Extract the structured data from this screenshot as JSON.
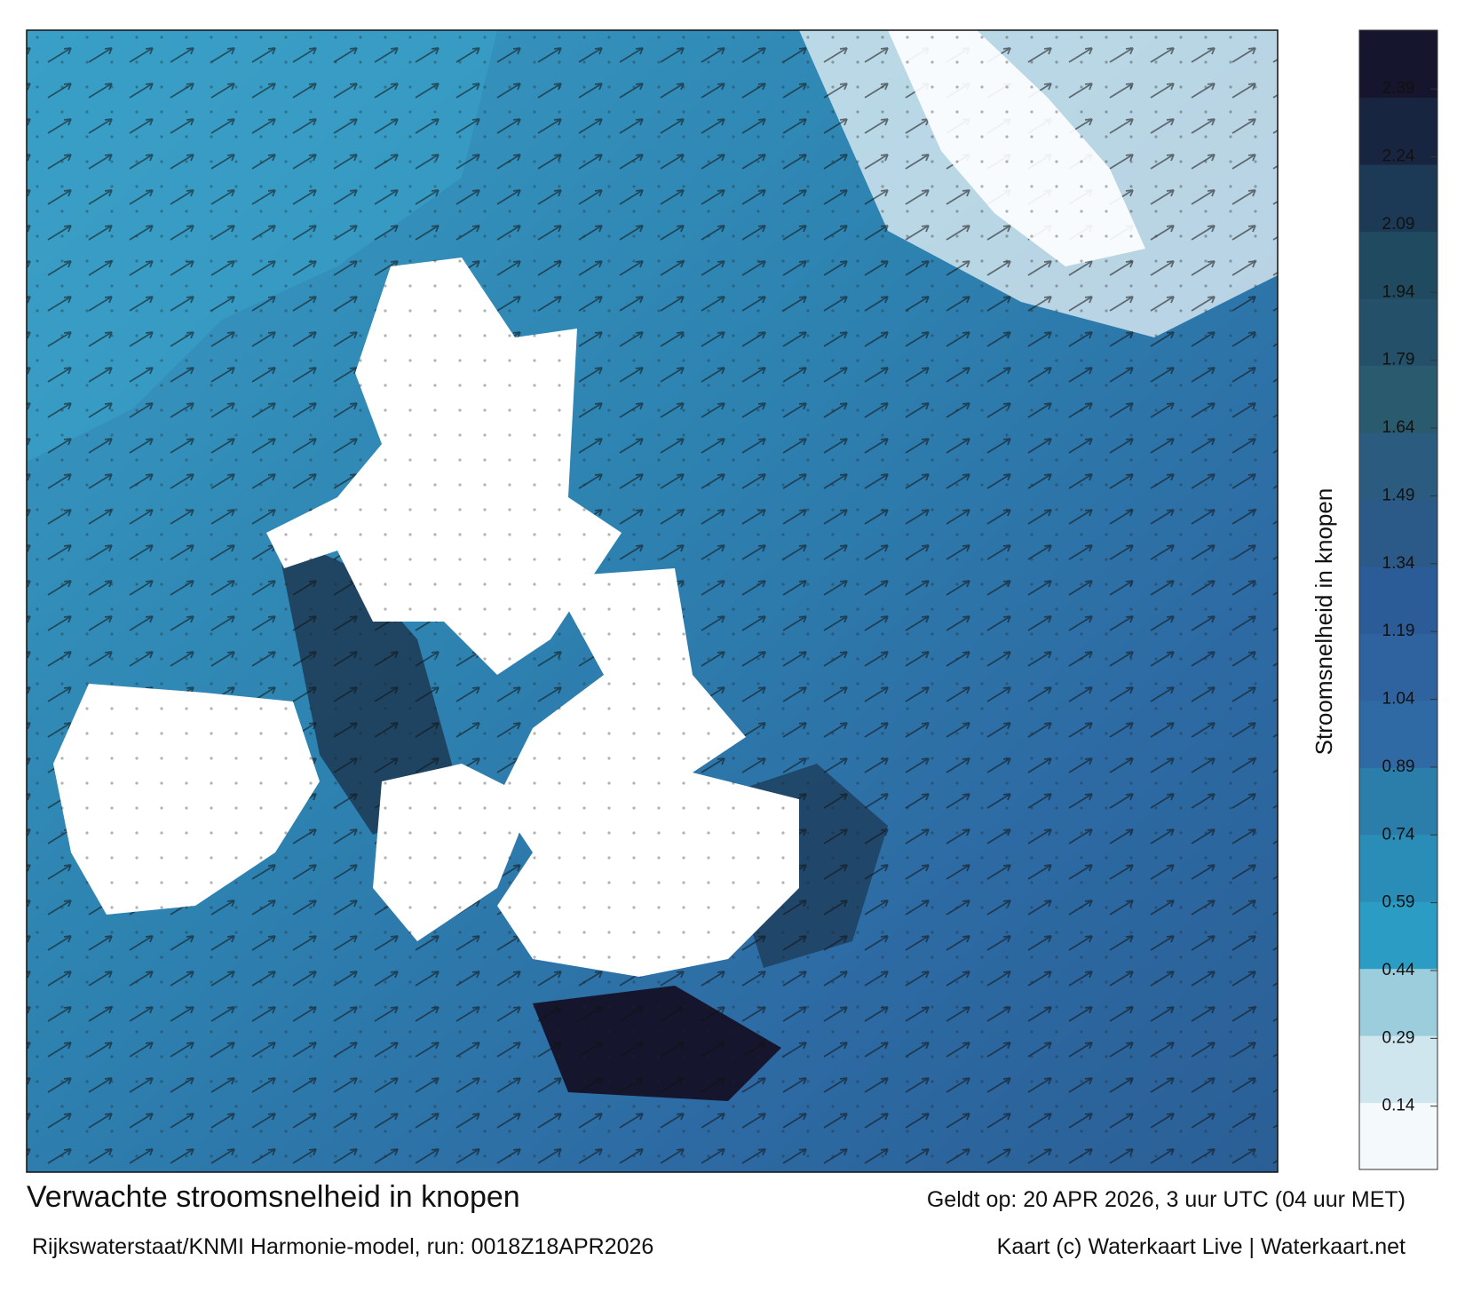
{
  "map": {
    "title": "Verwachte stroomsnelheid in knopen",
    "subtitle": "Rijkswaterstaat/KNMI Harmonie-model, run: 0018Z18APR2026",
    "valid": "Geldt op: 20 APR 2026, 3 uur UTC (04 uur MET)",
    "credit": "Kaart (c) Waterkaart Live | Waterkaart.net"
  },
  "colorbar": {
    "label": "Stroomsnelheid in knopen",
    "range": [
      0,
      2.52
    ],
    "ticks": [
      0.14,
      0.29,
      0.44,
      0.59,
      0.74,
      0.89,
      1.04,
      1.19,
      1.34,
      1.49,
      1.64,
      1.79,
      1.94,
      2.09,
      2.24,
      2.39
    ],
    "colors": [
      "#f4f9fb",
      "#cfe6ee",
      "#9ccddd",
      "#2b9cc4",
      "#2a8db7",
      "#2b7eaa",
      "#2f6aa4",
      "#2e63a0",
      "#2c5c98",
      "#2b5a89",
      "#2b5b7f",
      "#2a5a6d",
      "#245069",
      "#1f4a60",
      "#1c3a55",
      "#182540",
      "#15152d"
    ]
  }
}
